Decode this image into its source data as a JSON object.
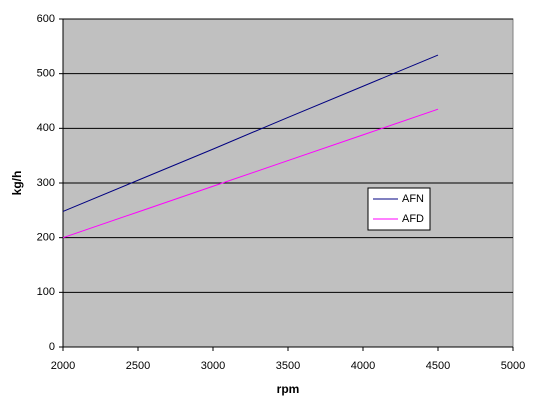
{
  "chart_data": {
    "type": "line",
    "x_label": "rpm",
    "y_label": "kg/h",
    "x": [
      2000,
      2500,
      3000,
      3500,
      4000,
      4500
    ],
    "series": [
      {
        "name": "AFN",
        "color": "#000080",
        "values": [
          248,
          305,
          362,
          420,
          477,
          534
        ]
      },
      {
        "name": "AFD",
        "color": "#FF00FF",
        "values": [
          200,
          247,
          294,
          341,
          388,
          435
        ]
      }
    ],
    "xlim": [
      2000,
      5000
    ],
    "xticks": [
      2000,
      2500,
      3000,
      3500,
      4000,
      4500,
      5000
    ],
    "ylim": [
      0,
      600
    ],
    "yticks": [
      0,
      100,
      200,
      300,
      400,
      500,
      600
    ],
    "grid": true,
    "plot_background": "#C0C0C0"
  }
}
